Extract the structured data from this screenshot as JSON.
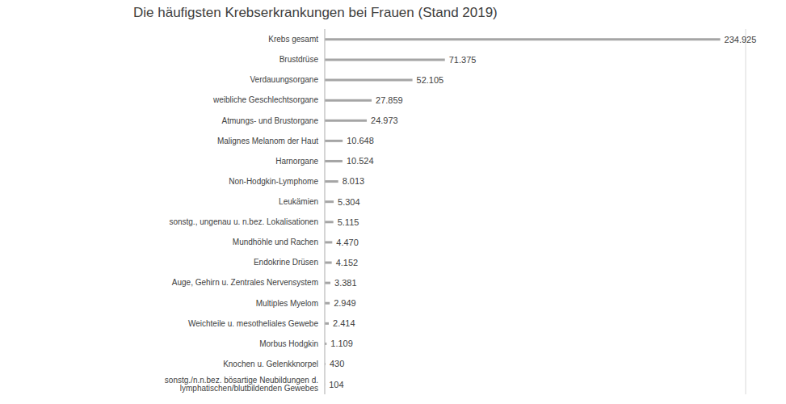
{
  "chart_data": {
    "type": "bar",
    "title": "Die häufigsten Krebserkrankungen bei Frauen (Stand 2019)",
    "orientation": "horizontal",
    "categories": [
      "Krebs gesamt",
      "Brustdrüse",
      "Verdauungsorgane",
      "weibliche Geschlechtsorgane",
      "Atmungs- und Brustorgane",
      "Malignes Melanom der Haut",
      "Harnorgane",
      "Non-Hodgkin-Lymphome",
      "Leukämien",
      "sonstg., ungenau u. n.bez. Lokalisationen",
      "Mundhöhle und Rachen",
      "Endokrine Drüsen",
      "Auge, Gehirn u. Zentrales Nervensystem",
      "Multiples Myelom",
      "Weichteile u. mesotheliales Gewebe",
      "Morbus Hodgkin",
      "Knochen u. Gelenkknorpel",
      "sonstg./n.n.bez. bösartige Neubildungen d. lymphatischen/blutbildenden Gewebes"
    ],
    "values": [
      234925,
      71375,
      52105,
      27859,
      24973,
      10648,
      10524,
      8013,
      5304,
      5115,
      4470,
      4152,
      3381,
      2949,
      2414,
      1109,
      430,
      104
    ],
    "value_labels": [
      "234.925",
      "71.375",
      "52.105",
      "27.859",
      "24.973",
      "10.648",
      "10.524",
      "8.013",
      "5.304",
      "5.115",
      "4.470",
      "4.152",
      "3.381",
      "2.949",
      "2.414",
      "1.109",
      "430",
      "104"
    ],
    "color": "#a5a5a5",
    "xlim": [
      0,
      250000
    ],
    "xticks": [
      0,
      50000,
      100000,
      150000,
      200000,
      250000
    ],
    "grid": true,
    "data_labels": true,
    "tick_labels": "y"
  }
}
